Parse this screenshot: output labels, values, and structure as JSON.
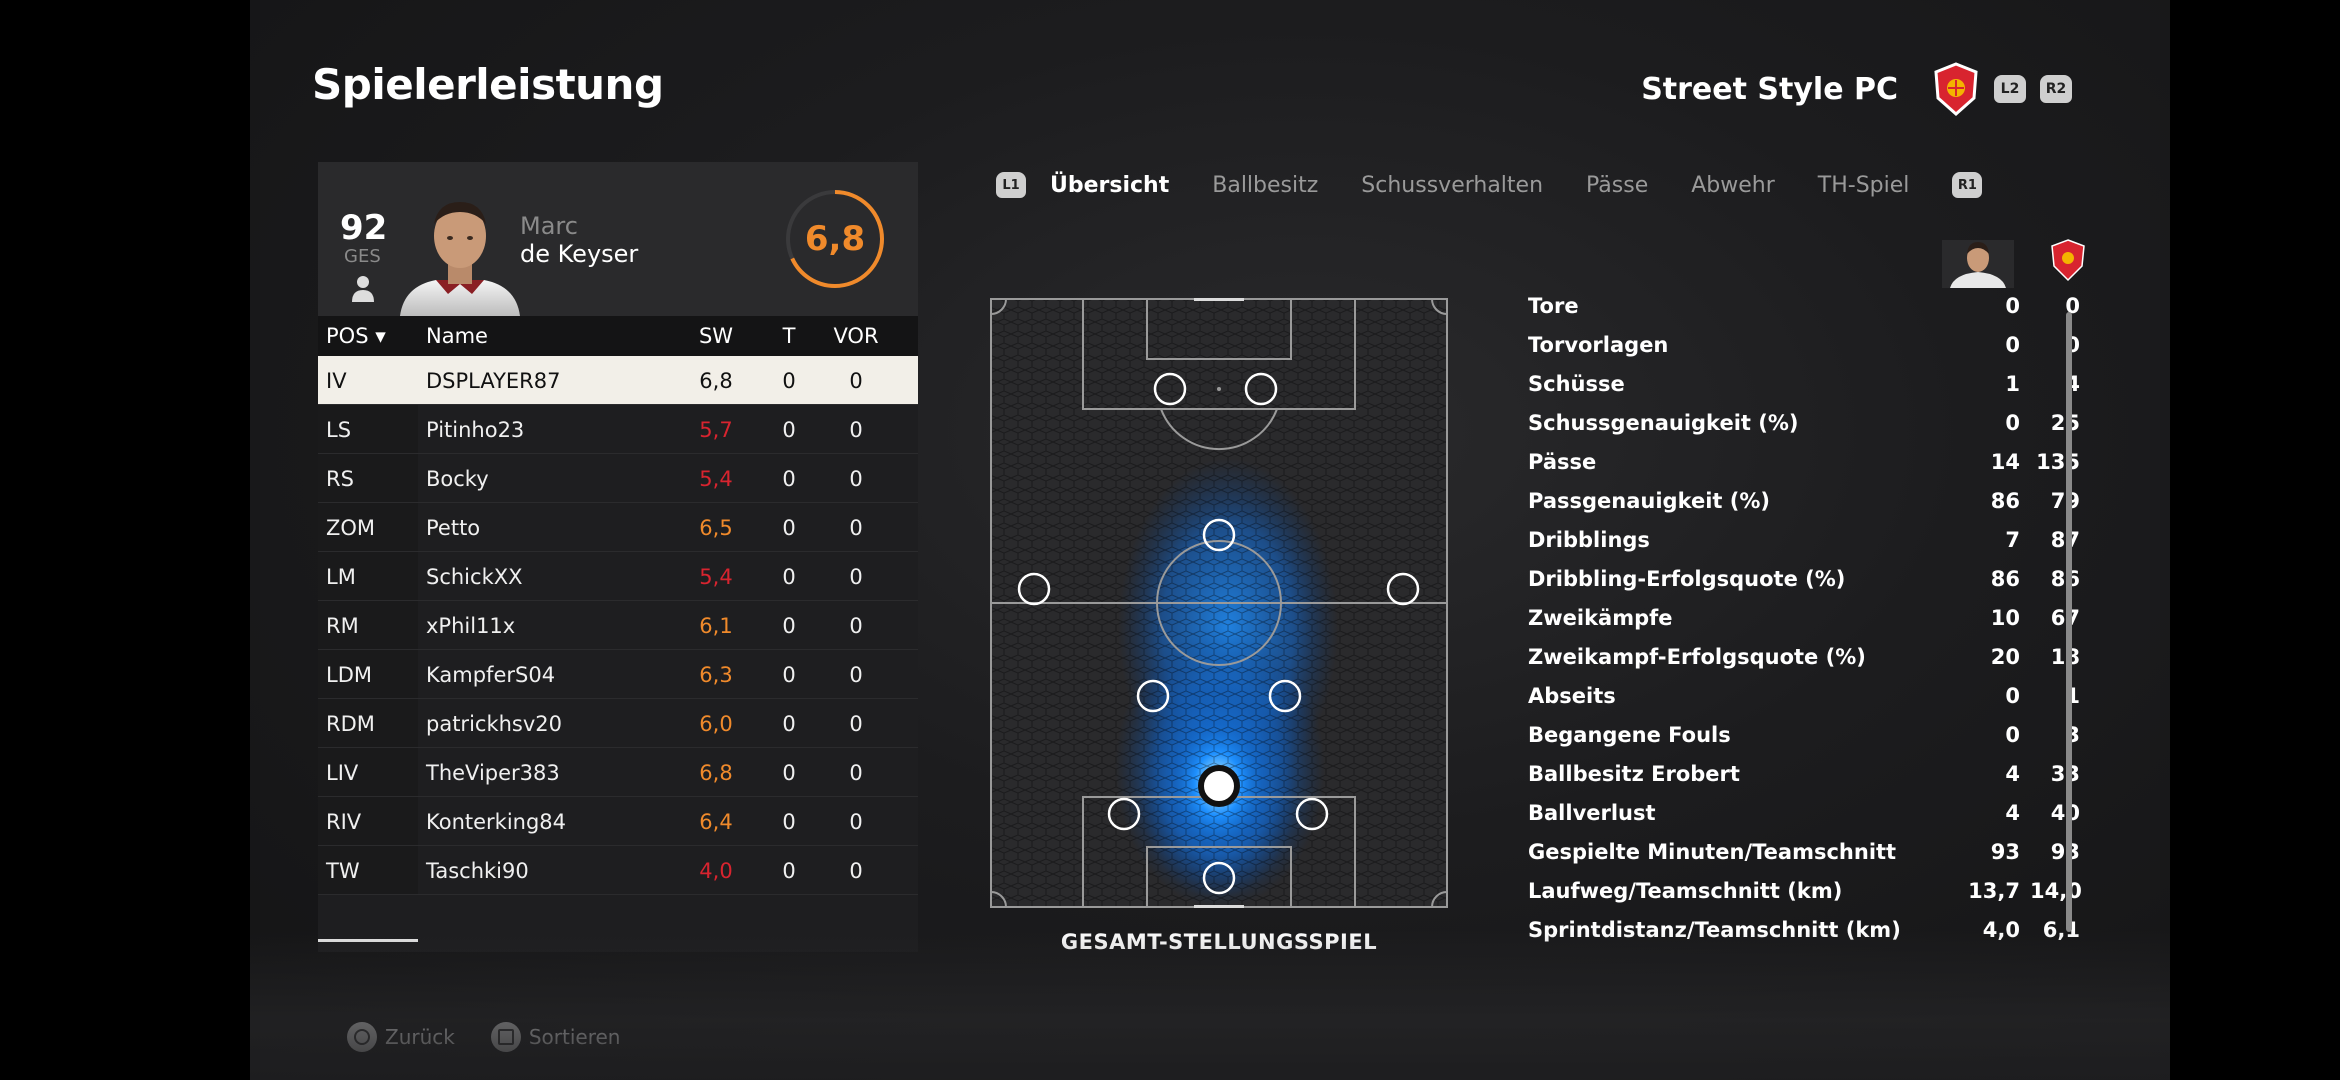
{
  "header": {
    "title": "Spielerleistung",
    "team_name": "Street Style PC",
    "btn_l2": "L2",
    "btn_r2": "R2"
  },
  "player": {
    "overall": "92",
    "overall_label": "GES",
    "first_name": "Marc",
    "last_name": "de Keyser",
    "match_rating": "6,8"
  },
  "table": {
    "headers": {
      "pos": "POS ▾",
      "name": "Name",
      "sw": "SW",
      "t": "T",
      "vor": "VOR"
    },
    "rows": [
      {
        "pos": "IV",
        "name": "DSPLAYER87",
        "sw": "6,8",
        "t": "0",
        "vor": "0",
        "color": "default",
        "selected": true
      },
      {
        "pos": "LS",
        "name": "Pitinho23",
        "sw": "5,7",
        "t": "0",
        "vor": "0",
        "color": "red"
      },
      {
        "pos": "RS",
        "name": "Bocky",
        "sw": "5,4",
        "t": "0",
        "vor": "0",
        "color": "red"
      },
      {
        "pos": "ZOM",
        "name": "Petto",
        "sw": "6,5",
        "t": "0",
        "vor": "0",
        "color": "orange"
      },
      {
        "pos": "LM",
        "name": "SchickXX",
        "sw": "5,4",
        "t": "0",
        "vor": "0",
        "color": "red"
      },
      {
        "pos": "RM",
        "name": "xPhil11x",
        "sw": "6,1",
        "t": "0",
        "vor": "0",
        "color": "orange"
      },
      {
        "pos": "LDM",
        "name": "KampferS04",
        "sw": "6,3",
        "t": "0",
        "vor": "0",
        "color": "orange"
      },
      {
        "pos": "RDM",
        "name": "patrickhsv20",
        "sw": "6,0",
        "t": "0",
        "vor": "0",
        "color": "orange"
      },
      {
        "pos": "LIV",
        "name": "TheViper383",
        "sw": "6,8",
        "t": "0",
        "vor": "0",
        "color": "orange"
      },
      {
        "pos": "RIV",
        "name": "Konterking84",
        "sw": "6,4",
        "t": "0",
        "vor": "0",
        "color": "orange"
      },
      {
        "pos": "TW",
        "name": "Taschki90",
        "sw": "4,0",
        "t": "0",
        "vor": "0",
        "color": "red"
      }
    ]
  },
  "tabs": {
    "btn_l1": "L1",
    "btn_r1": "R1",
    "items": [
      "Übersicht",
      "Ballbesitz",
      "Schussverhalten",
      "Pässe",
      "Abwehr",
      "TH-Spiel"
    ],
    "active": "Übersicht"
  },
  "pitch": {
    "label": "GESAMT-STELLUNGSSPIEL"
  },
  "stats": [
    {
      "label": "Tore",
      "player": "0",
      "team": "0"
    },
    {
      "label": "Torvorlagen",
      "player": "0",
      "team": "0"
    },
    {
      "label": "Schüsse",
      "player": "1",
      "team": "4"
    },
    {
      "label": "Schussgenauigkeit (%)",
      "player": "0",
      "team": "25"
    },
    {
      "label": "Pässe",
      "player": "14",
      "team": "135"
    },
    {
      "label": "Passgenauigkeit (%)",
      "player": "86",
      "team": "79"
    },
    {
      "label": "Dribblings",
      "player": "7",
      "team": "87"
    },
    {
      "label": "Dribbling-Erfolgsquote (%)",
      "player": "86",
      "team": "86"
    },
    {
      "label": "Zweikämpfe",
      "player": "10",
      "team": "67"
    },
    {
      "label": "Zweikampf-Erfolgsquote (%)",
      "player": "20",
      "team": "18"
    },
    {
      "label": "Abseits",
      "player": "0",
      "team": "1"
    },
    {
      "label": "Begangene Fouls",
      "player": "0",
      "team": "3"
    },
    {
      "label": "Ballbesitz Erobert",
      "player": "4",
      "team": "33"
    },
    {
      "label": "Ballverlust",
      "player": "4",
      "team": "40"
    },
    {
      "label": "Gespielte Minuten/Teamschnitt",
      "player": "93",
      "team": "93"
    },
    {
      "label": "Laufweg/Teamschnitt (km)",
      "player": "13,7",
      "team": "14,0"
    },
    {
      "label": "Sprintdistanz/Teamschnitt (km)",
      "player": "4,0",
      "team": "6,1"
    }
  ],
  "footer": {
    "back": "Zurück",
    "sort": "Sortieren"
  },
  "colors": {
    "accent_orange": "#f08a2b",
    "rating_red": "#d8242f",
    "heatmap_blue": "#1e90ff",
    "crest_red": "#d8242f"
  }
}
